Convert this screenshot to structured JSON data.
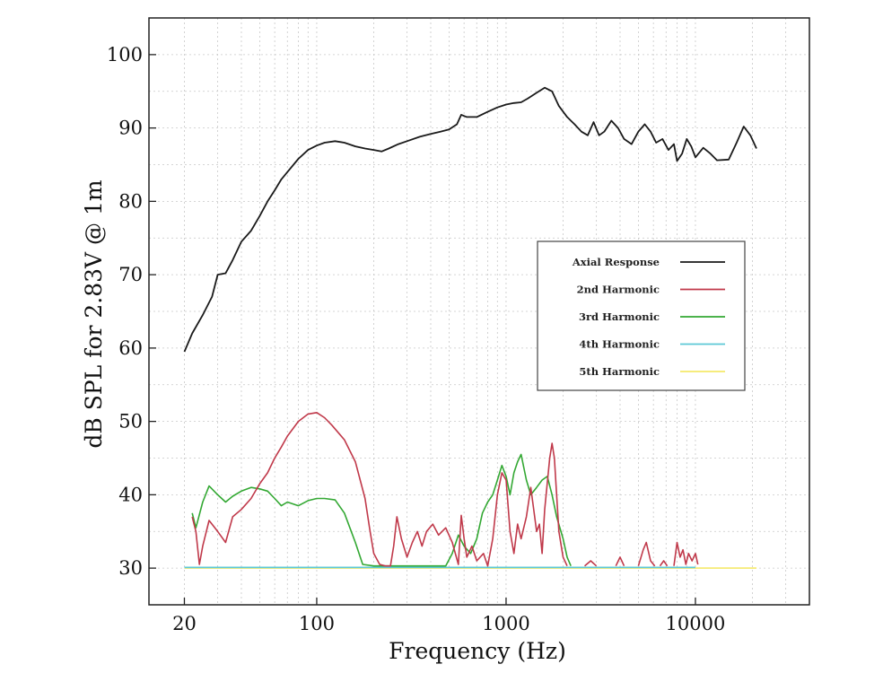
{
  "chart_data": {
    "type": "line",
    "xlabel": "Frequency (Hz)",
    "ylabel": "dB SPL for 2.83V @ 1m",
    "xscale": "log",
    "xlim": [
      13,
      40000
    ],
    "ylim": [
      25,
      105
    ],
    "xticks": [
      20,
      100,
      1000,
      10000
    ],
    "xtick_labels": [
      "20",
      "100",
      "1000",
      "10000"
    ],
    "yticks": [
      30,
      40,
      50,
      60,
      70,
      80,
      90,
      100
    ],
    "ytick_labels": [
      "30",
      "40",
      "50",
      "60",
      "70",
      "80",
      "90",
      "100"
    ],
    "grid": true,
    "legend_position": "right-middle",
    "series": [
      {
        "name": "Axial Response",
        "color": "#1a1a1a",
        "points": [
          [
            20,
            59.5
          ],
          [
            22,
            62
          ],
          [
            25,
            64.5
          ],
          [
            28,
            67
          ],
          [
            30,
            70
          ],
          [
            33,
            70.2
          ],
          [
            36,
            72
          ],
          [
            40,
            74.5
          ],
          [
            45,
            76
          ],
          [
            50,
            78
          ],
          [
            55,
            80
          ],
          [
            60,
            81.5
          ],
          [
            65,
            83
          ],
          [
            70,
            84
          ],
          [
            80,
            85.8
          ],
          [
            90,
            87
          ],
          [
            100,
            87.6
          ],
          [
            110,
            88
          ],
          [
            125,
            88.2
          ],
          [
            140,
            88
          ],
          [
            160,
            87.5
          ],
          [
            180,
            87.2
          ],
          [
            200,
            87
          ],
          [
            220,
            86.8
          ],
          [
            240,
            87.2
          ],
          [
            270,
            87.8
          ],
          [
            300,
            88.2
          ],
          [
            350,
            88.8
          ],
          [
            400,
            89.2
          ],
          [
            450,
            89.5
          ],
          [
            500,
            89.8
          ],
          [
            550,
            90.5
          ],
          [
            580,
            91.8
          ],
          [
            620,
            91.5
          ],
          [
            700,
            91.5
          ],
          [
            800,
            92.2
          ],
          [
            900,
            92.8
          ],
          [
            1000,
            93.2
          ],
          [
            1100,
            93.4
          ],
          [
            1200,
            93.5
          ],
          [
            1300,
            94
          ],
          [
            1450,
            94.8
          ],
          [
            1600,
            95.5
          ],
          [
            1750,
            95
          ],
          [
            1900,
            93
          ],
          [
            2100,
            91.5
          ],
          [
            2300,
            90.5
          ],
          [
            2500,
            89.5
          ],
          [
            2700,
            89
          ],
          [
            2900,
            90.8
          ],
          [
            3100,
            89
          ],
          [
            3300,
            89.5
          ],
          [
            3600,
            91
          ],
          [
            3900,
            90
          ],
          [
            4200,
            88.5
          ],
          [
            4600,
            87.8
          ],
          [
            5000,
            89.5
          ],
          [
            5400,
            90.5
          ],
          [
            5800,
            89.5
          ],
          [
            6200,
            88
          ],
          [
            6700,
            88.5
          ],
          [
            7200,
            87
          ],
          [
            7700,
            87.8
          ],
          [
            8000,
            85.5
          ],
          [
            8500,
            86.5
          ],
          [
            9000,
            88.5
          ],
          [
            9500,
            87.5
          ],
          [
            10000,
            86
          ],
          [
            11000,
            87.3
          ],
          [
            12000,
            86.5
          ],
          [
            13000,
            85.6
          ],
          [
            15000,
            85.7
          ],
          [
            16500,
            88
          ],
          [
            18000,
            90.2
          ],
          [
            19500,
            89
          ],
          [
            21000,
            87.2
          ]
        ]
      },
      {
        "name": "2nd Harmonic",
        "color": "#c0394a",
        "points": [
          [
            22,
            37
          ],
          [
            23,
            35
          ],
          [
            24,
            30.5
          ],
          [
            25,
            33
          ],
          [
            27,
            36.5
          ],
          [
            30,
            35
          ],
          [
            33,
            33.5
          ],
          [
            36,
            37
          ],
          [
            40,
            38
          ],
          [
            45,
            39.5
          ],
          [
            50,
            41.5
          ],
          [
            55,
            43
          ],
          [
            60,
            45
          ],
          [
            65,
            46.5
          ],
          [
            70,
            48
          ],
          [
            80,
            50
          ],
          [
            90,
            51
          ],
          [
            100,
            51.2
          ],
          [
            110,
            50.5
          ],
          [
            120,
            49.5
          ],
          [
            140,
            47.5
          ],
          [
            160,
            44.5
          ],
          [
            180,
            39.5
          ],
          [
            190,
            35.5
          ],
          [
            200,
            32
          ],
          [
            215,
            30.5
          ],
          [
            230,
            30.3
          ],
          [
            245,
            30.3
          ],
          [
            255,
            33
          ],
          [
            265,
            37
          ],
          [
            280,
            34
          ],
          [
            300,
            31.5
          ],
          [
            320,
            33.5
          ],
          [
            340,
            35
          ],
          [
            360,
            33
          ],
          [
            380,
            35
          ],
          [
            410,
            36
          ],
          [
            440,
            34.5
          ],
          [
            480,
            35.5
          ],
          [
            520,
            33.5
          ],
          [
            560,
            30.5
          ],
          [
            580,
            37.2
          ],
          [
            600,
            34
          ],
          [
            620,
            31.5
          ],
          [
            660,
            33
          ],
          [
            700,
            31
          ],
          [
            760,
            32
          ],
          [
            800,
            30.3
          ],
          [
            850,
            34
          ],
          [
            900,
            40
          ],
          [
            950,
            43
          ],
          [
            1000,
            42
          ],
          [
            1050,
            35
          ],
          [
            1100,
            32
          ],
          [
            1150,
            36
          ],
          [
            1200,
            34
          ],
          [
            1280,
            37
          ],
          [
            1350,
            41
          ],
          [
            1450,
            35
          ],
          [
            1500,
            36
          ],
          [
            1550,
            32
          ],
          [
            1600,
            38
          ],
          [
            1700,
            45
          ],
          [
            1750,
            47
          ],
          [
            1800,
            45
          ],
          [
            1850,
            40
          ],
          [
            1900,
            35
          ],
          [
            2000,
            31.5
          ],
          [
            2100,
            30.3
          ]
        ]
      },
      {
        "name": "3rd Harmonic",
        "color": "#33a833",
        "points": [
          [
            22,
            37.5
          ],
          [
            23,
            35.5
          ],
          [
            25,
            39
          ],
          [
            27,
            41.2
          ],
          [
            30,
            40
          ],
          [
            33,
            39
          ],
          [
            36,
            39.8
          ],
          [
            40,
            40.5
          ],
          [
            45,
            41
          ],
          [
            50,
            40.8
          ],
          [
            55,
            40.5
          ],
          [
            60,
            39.5
          ],
          [
            65,
            38.5
          ],
          [
            70,
            39
          ],
          [
            80,
            38.5
          ],
          [
            90,
            39.2
          ],
          [
            100,
            39.5
          ],
          [
            110,
            39.5
          ],
          [
            125,
            39.3
          ],
          [
            140,
            37.5
          ],
          [
            160,
            33.5
          ],
          [
            175,
            30.5
          ],
          [
            200,
            30.3
          ],
          [
            260,
            30.3
          ],
          [
            320,
            30.3
          ],
          [
            400,
            30.3
          ],
          [
            480,
            30.3
          ],
          [
            520,
            32
          ],
          [
            560,
            34.5
          ],
          [
            600,
            33
          ],
          [
            650,
            32
          ],
          [
            700,
            34
          ],
          [
            750,
            37.5
          ],
          [
            800,
            39
          ],
          [
            850,
            40
          ],
          [
            900,
            42
          ],
          [
            950,
            44
          ],
          [
            1000,
            42.5
          ],
          [
            1050,
            40
          ],
          [
            1100,
            43
          ],
          [
            1150,
            44.5
          ],
          [
            1200,
            45.5
          ],
          [
            1280,
            42
          ],
          [
            1350,
            40
          ],
          [
            1450,
            41
          ],
          [
            1550,
            42
          ],
          [
            1650,
            42.5
          ],
          [
            1750,
            40
          ],
          [
            1850,
            37
          ],
          [
            2000,
            34
          ],
          [
            2100,
            31.5
          ],
          [
            2200,
            30.3
          ]
        ]
      },
      {
        "name": "4th Harmonic",
        "color": "#5cc8d6",
        "points": [
          [
            20,
            30.1
          ],
          [
            10000,
            30.1
          ]
        ]
      },
      {
        "name": "5th Harmonic",
        "color": "#f5ea6a",
        "points": [
          [
            20,
            30
          ],
          [
            21000,
            30
          ]
        ]
      }
    ],
    "extra_segments": [
      {
        "color": "#c0394a",
        "points": [
          [
            2600,
            30.3
          ],
          [
            2800,
            31
          ],
          [
            3000,
            30.3
          ]
        ]
      },
      {
        "color": "#c0394a",
        "points": [
          [
            3800,
            30.3
          ],
          [
            4000,
            31.5
          ],
          [
            4200,
            30.3
          ]
        ]
      },
      {
        "color": "#c0394a",
        "points": [
          [
            5000,
            30.3
          ],
          [
            5300,
            32.5
          ],
          [
            5500,
            33.5
          ],
          [
            5800,
            31
          ],
          [
            6100,
            30.3
          ]
        ]
      },
      {
        "color": "#c0394a",
        "points": [
          [
            6500,
            30.3
          ],
          [
            6800,
            31
          ],
          [
            7100,
            30.3
          ]
        ]
      },
      {
        "color": "#c0394a",
        "points": [
          [
            7700,
            30.3
          ],
          [
            8000,
            33.5
          ],
          [
            8300,
            31.5
          ],
          [
            8600,
            32.5
          ],
          [
            8900,
            30.5
          ],
          [
            9200,
            32
          ],
          [
            9600,
            31
          ],
          [
            10000,
            32
          ],
          [
            10300,
            30.5
          ]
        ]
      }
    ]
  }
}
